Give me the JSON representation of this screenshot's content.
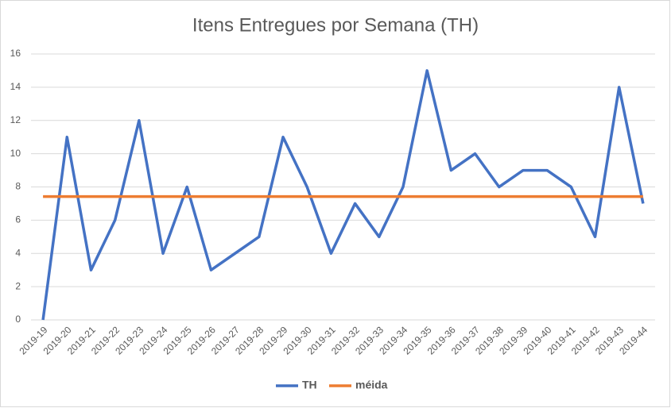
{
  "chart_data": {
    "type": "line",
    "title": "Itens Entregues por Semana (TH)",
    "categories": [
      "2019-19",
      "2019-20",
      "2019-21",
      "2019-22",
      "2019-23",
      "2019-24",
      "2019-25",
      "2019-26",
      "2019-27",
      "2019-28",
      "2019-29",
      "2019-30",
      "2019-31",
      "2019-32",
      "2019-33",
      "2019-34",
      "2019-35",
      "2019-36",
      "2019-37",
      "2019-38",
      "2019-39",
      "2019-40",
      "2019-41",
      "2019-42",
      "2019-43",
      "2019-44"
    ],
    "series": [
      {
        "name": "TH",
        "color": "#4472c4",
        "values": [
          0,
          11,
          3,
          6,
          12,
          4,
          8,
          3,
          4,
          5,
          11,
          8,
          4,
          7,
          5,
          8,
          15,
          9,
          10,
          8,
          9,
          9,
          8,
          5,
          14,
          7
        ]
      },
      {
        "name": "méida",
        "color": "#ed7d31",
        "values": [
          7.42,
          7.42,
          7.42,
          7.42,
          7.42,
          7.42,
          7.42,
          7.42,
          7.42,
          7.42,
          7.42,
          7.42,
          7.42,
          7.42,
          7.42,
          7.42,
          7.42,
          7.42,
          7.42,
          7.42,
          7.42,
          7.42,
          7.42,
          7.42,
          7.42,
          7.42
        ]
      }
    ],
    "ylim": [
      0,
      16
    ],
    "yticks": [
      0,
      2,
      4,
      6,
      8,
      10,
      12,
      14,
      16
    ],
    "grid": true,
    "legend": "bottom"
  }
}
